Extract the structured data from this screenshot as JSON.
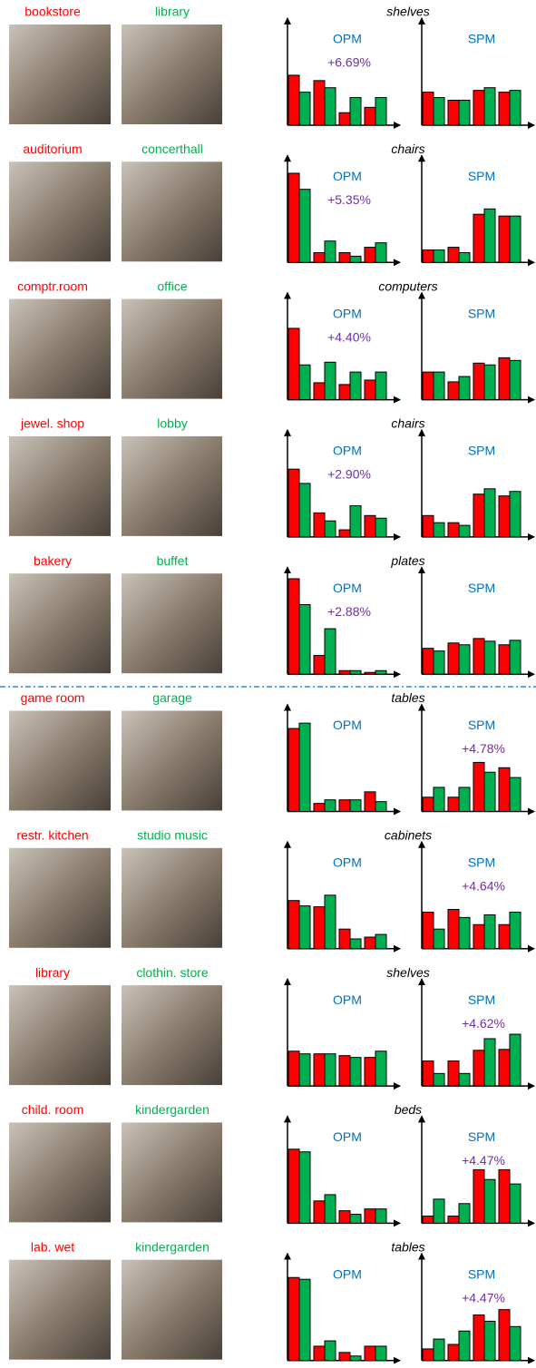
{
  "bar_colors": [
    "#ff0000",
    "#00b050"
  ],
  "rows": [
    {
      "scene_a": "bookstore",
      "scene_b": "library",
      "object": "shelves",
      "opm": {
        "title": "OPM",
        "gain": "+6.69%",
        "ylim": [
          0,
          120
        ],
        "values": [
          56,
          37,
          50,
          42,
          14,
          31,
          20,
          31
        ]
      },
      "spm": {
        "title": "SPM",
        "ylim": [
          0,
          120
        ],
        "values": [
          37,
          31,
          28,
          28,
          39,
          42,
          37,
          39
        ]
      }
    },
    {
      "scene_a": "auditorium",
      "scene_b": "concerthall",
      "object": "chairs",
      "opm": {
        "title": "OPM",
        "gain": "+5.35%",
        "ylim": [
          0,
          120
        ],
        "values": [
          100,
          82,
          11,
          24,
          11,
          7,
          17,
          22
        ]
      },
      "spm": {
        "title": "SPM",
        "ylim": [
          0,
          120
        ],
        "values": [
          14,
          14,
          17,
          11,
          54,
          60,
          52,
          52
        ]
      }
    },
    {
      "scene_a": "comptr.room",
      "scene_b": "office",
      "object": "computers",
      "opm": {
        "title": "OPM",
        "gain": "+4.40%",
        "ylim": [
          0,
          120
        ],
        "values": [
          80,
          39,
          19,
          42,
          17,
          31,
          22,
          31
        ]
      },
      "spm": {
        "title": "SPM",
        "ylim": [
          0,
          120
        ],
        "values": [
          31,
          31,
          20,
          26,
          41,
          39,
          47,
          44
        ]
      }
    },
    {
      "scene_a": "jewel. shop",
      "scene_b": "lobby",
      "object": "chairs",
      "opm": {
        "title": "OPM",
        "gain": "+2.90%",
        "ylim": [
          0,
          120
        ],
        "values": [
          76,
          60,
          27,
          18,
          8,
          35,
          24,
          21
        ]
      },
      "spm": {
        "title": "SPM",
        "ylim": [
          0,
          120
        ],
        "values": [
          24,
          16,
          16,
          13,
          48,
          54,
          46,
          51
        ]
      }
    },
    {
      "scene_a": "bakery",
      "scene_b": "buffet",
      "object": "plates",
      "opm": {
        "title": "OPM",
        "gain": "+2.88%",
        "ylim": [
          0,
          120
        ],
        "values": [
          107,
          78,
          21,
          51,
          4,
          4,
          2,
          4
        ]
      },
      "spm": {
        "title": "SPM",
        "ylim": [
          0,
          120
        ],
        "values": [
          29,
          26,
          35,
          33,
          40,
          37,
          33,
          38
        ]
      }
    },
    {
      "scene_a": "game room",
      "scene_b": "garage",
      "object": "tables",
      "opm": {
        "title": "OPM",
        "ylim": [
          0,
          120
        ],
        "values": [
          93,
          99,
          9,
          13,
          13,
          13,
          22,
          11
        ]
      },
      "spm": {
        "title": "SPM",
        "gain": "+4.78%",
        "ylim": [
          0,
          120
        ],
        "values": [
          16,
          27,
          16,
          27,
          55,
          44,
          49,
          38
        ]
      }
    },
    {
      "scene_a": "restr. kitchen",
      "scene_b": "studio music",
      "object": "cabinets",
      "opm": {
        "title": "OPM",
        "ylim": [
          0,
          120
        ],
        "values": [
          54,
          48,
          47,
          60,
          22,
          11,
          13,
          16
        ]
      },
      "spm": {
        "title": "SPM",
        "gain": "+4.64%",
        "ylim": [
          0,
          120
        ],
        "values": [
          41,
          22,
          44,
          35,
          27,
          38,
          27,
          41
        ]
      }
    },
    {
      "scene_a": "library",
      "scene_b": "clothin. store",
      "object": "shelves",
      "opm": {
        "title": "OPM",
        "ylim": [
          0,
          120
        ],
        "values": [
          39,
          36,
          36,
          36,
          34,
          32,
          32,
          39
        ]
      },
      "spm": {
        "title": "SPM",
        "gain": "+4.62%",
        "ylim": [
          0,
          120
        ],
        "values": [
          28,
          14,
          28,
          14,
          40,
          53,
          41,
          58
        ]
      }
    },
    {
      "scene_a": "child. room",
      "scene_b": "kindergarden",
      "object": "beds",
      "opm": {
        "title": "OPM",
        "ylim": [
          0,
          120
        ],
        "values": [
          83,
          80,
          25,
          32,
          14,
          10,
          16,
          16
        ]
      },
      "spm": {
        "title": "SPM",
        "gain": "+4.47%",
        "ylim": [
          0,
          120
        ],
        "values": [
          8,
          27,
          8,
          22,
          60,
          49,
          60,
          44
        ]
      }
    },
    {
      "scene_a": "lab. wet",
      "scene_b": "kindergarden",
      "object": "tables",
      "opm": {
        "title": "OPM",
        "ylim": [
          0,
          120
        ],
        "values": [
          93,
          91,
          16,
          22,
          9,
          5,
          16,
          16
        ]
      },
      "spm": {
        "title": "SPM",
        "gain": "+4.47%",
        "ylim": [
          0,
          120
        ],
        "values": [
          13,
          24,
          18,
          33,
          51,
          44,
          57,
          38
        ]
      }
    }
  ]
}
